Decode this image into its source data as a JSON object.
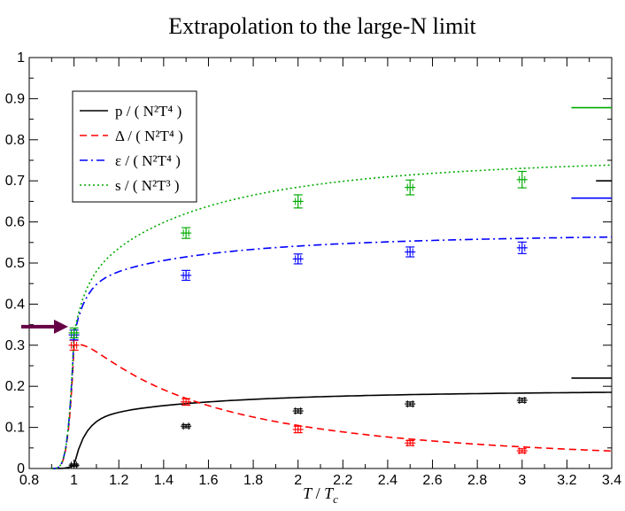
{
  "chart_data": {
    "type": "line",
    "title": "Extrapolation to the large-N limit",
    "xlabel": "T / T_c",
    "ylabel": "",
    "xlim": [
      0.8,
      3.4
    ],
    "ylim": [
      0,
      1
    ],
    "x_ticks": [
      0.8,
      1,
      1.2,
      1.4,
      1.6,
      1.8,
      2,
      2.2,
      2.4,
      2.6,
      2.8,
      3,
      3.2,
      3.4
    ],
    "x_tick_labels": [
      "0.8",
      "1",
      "1.2",
      "1.4",
      "1.6",
      "1.8",
      "2",
      "2.2",
      "2.4",
      "2.6",
      "2.8",
      "3",
      "3.2",
      "3.4"
    ],
    "y_ticks": [
      0,
      0.1,
      0.2,
      0.3,
      0.4,
      0.5,
      0.6,
      0.7,
      0.8,
      0.9,
      1
    ],
    "y_tick_labels": [
      "0",
      "0.1",
      "0.2",
      "0.3",
      "0.4",
      "0.5",
      "0.6",
      "0.7",
      "0.8",
      "0.9",
      "1"
    ],
    "grid": false,
    "legend_position": "top-left",
    "series": [
      {
        "name": "p / ( N^2 T^4 )",
        "legend_label": "p / ( N²T⁴ )",
        "color": "#000000",
        "dash": "solid",
        "points": [
          [
            1.0,
            0.008
          ],
          [
            1.5,
            0.103
          ],
          [
            2.0,
            0.14
          ],
          [
            2.5,
            0.157
          ],
          [
            3.0,
            0.166
          ]
        ],
        "errors": [
          0.003,
          0.004,
          0.005,
          0.005,
          0.005
        ],
        "fit": {
          "type": "rise",
          "A": 0.192,
          "b": 0.4
        },
        "limit": 0.22
      },
      {
        "name": "Δ / ( N^2 T^4 )",
        "legend_label": "Δ / ( N²T⁴ )",
        "color": "#ff0000",
        "dash": "dashed",
        "points": [
          [
            1.0,
            0.3
          ],
          [
            1.5,
            0.162
          ],
          [
            2.0,
            0.095
          ],
          [
            2.5,
            0.062
          ],
          [
            3.0,
            0.043
          ]
        ],
        "errors": [
          0.012,
          0.008,
          0.008,
          0.006,
          0.005
        ],
        "fit": {
          "type": "power",
          "A": 0.34,
          "n": 1.7
        }
      },
      {
        "name": "ε / ( N^2 T^4 )",
        "legend_label": "ε / ( N²T⁴ )",
        "color": "#0000ff",
        "dash": "dashdot",
        "points": [
          [
            1.0,
            0.325
          ],
          [
            1.5,
            0.47
          ],
          [
            2.0,
            0.51
          ],
          [
            2.5,
            0.527
          ],
          [
            3.0,
            0.537
          ]
        ],
        "errors": [
          0.012,
          0.012,
          0.012,
          0.012,
          0.014
        ],
        "fit": {
          "type": "rise",
          "A": 0.575,
          "b": 0.235
        },
        "limit": 0.658
      },
      {
        "name": "s / ( N^2 T^3 )",
        "legend_label": "s / ( N²T³ )",
        "color": "#00aa00",
        "dash": "dotted",
        "points": [
          [
            1.0,
            0.33
          ],
          [
            1.5,
            0.573
          ],
          [
            2.0,
            0.65
          ],
          [
            2.5,
            0.684
          ],
          [
            3.0,
            0.703
          ]
        ],
        "errors": [
          0.012,
          0.013,
          0.016,
          0.018,
          0.02
        ],
        "fit": {
          "type": "rise",
          "A": 0.767,
          "b": 0.43
        },
        "limit": 0.878
      }
    ],
    "side_limit_extra": 0.7,
    "arrow_annotation": {
      "x": 0.95,
      "y": 0.345,
      "color": "#660044"
    }
  }
}
